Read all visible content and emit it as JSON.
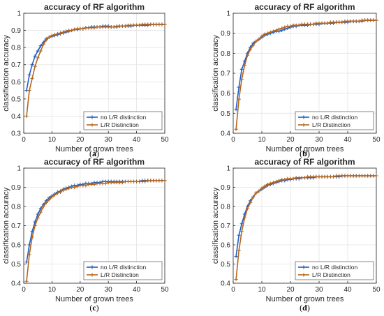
{
  "colors": {
    "series_blue": "#1f5fc1",
    "series_orange": "#b5651d",
    "grid": "#e3e3e3",
    "axis": "#262626"
  },
  "chart_data": [
    {
      "panel_label": "a",
      "type": "line",
      "title": "accuracy of RF algorithm",
      "xlabel": "Number of grown trees",
      "ylabel": "classification accuracy",
      "xlim": [
        0,
        50
      ],
      "ylim": [
        0.3,
        1.0
      ],
      "xticks": [
        0,
        10,
        20,
        30,
        40,
        50
      ],
      "yticks": [
        0.3,
        0.4,
        0.5,
        0.6,
        0.7,
        0.8,
        0.9,
        1.0
      ],
      "grid": true,
      "legend_position": "bottom-right",
      "series": [
        {
          "name": "no L/R distinction",
          "color": "#1f5fc1",
          "x": [
            1,
            2,
            3,
            4,
            5,
            6,
            7,
            8,
            9,
            10,
            11,
            12,
            13,
            14,
            15,
            16,
            17,
            18,
            19,
            20,
            21,
            22,
            23,
            24,
            25,
            26,
            27,
            28,
            29,
            30,
            31,
            32,
            33,
            34,
            35,
            36,
            37,
            38,
            39,
            40,
            41,
            42,
            43,
            44,
            45,
            46,
            47,
            48,
            49,
            50
          ],
          "y": [
            0.55,
            0.64,
            0.7,
            0.75,
            0.78,
            0.81,
            0.83,
            0.85,
            0.86,
            0.865,
            0.87,
            0.875,
            0.88,
            0.885,
            0.89,
            0.895,
            0.9,
            0.905,
            0.905,
            0.91,
            0.91,
            0.915,
            0.915,
            0.92,
            0.92,
            0.92,
            0.92,
            0.925,
            0.925,
            0.925,
            0.92,
            0.92,
            0.92,
            0.925,
            0.925,
            0.925,
            0.925,
            0.925,
            0.93,
            0.93,
            0.93,
            0.93,
            0.93,
            0.93,
            0.935,
            0.935,
            0.935,
            0.935,
            0.935,
            0.935
          ]
        },
        {
          "name": "L/R Distinction",
          "color": "#b5651d",
          "x": [
            1,
            2,
            3,
            4,
            5,
            6,
            7,
            8,
            9,
            10,
            11,
            12,
            13,
            14,
            15,
            16,
            17,
            18,
            19,
            20,
            21,
            22,
            23,
            24,
            25,
            26,
            27,
            28,
            29,
            30,
            31,
            32,
            33,
            34,
            35,
            36,
            37,
            38,
            39,
            40,
            41,
            42,
            43,
            44,
            45,
            46,
            47,
            48,
            49,
            50
          ],
          "y": [
            0.4,
            0.55,
            0.62,
            0.69,
            0.74,
            0.78,
            0.82,
            0.845,
            0.86,
            0.87,
            0.875,
            0.88,
            0.885,
            0.89,
            0.895,
            0.9,
            0.9,
            0.905,
            0.91,
            0.91,
            0.91,
            0.915,
            0.915,
            0.915,
            0.915,
            0.92,
            0.92,
            0.92,
            0.92,
            0.92,
            0.92,
            0.92,
            0.925,
            0.925,
            0.925,
            0.925,
            0.93,
            0.93,
            0.93,
            0.93,
            0.93,
            0.935,
            0.935,
            0.935,
            0.935,
            0.935,
            0.935,
            0.935,
            0.935,
            0.935
          ]
        }
      ]
    },
    {
      "panel_label": "b",
      "type": "line",
      "title": "accuracy of RF algorithm",
      "xlabel": "Number of grown trees",
      "ylabel": "classification accuracy",
      "xlim": [
        0,
        50
      ],
      "ylim": [
        0.4,
        1.0
      ],
      "xticks": [
        0,
        10,
        20,
        30,
        40,
        50
      ],
      "yticks": [
        0.4,
        0.5,
        0.6,
        0.7,
        0.8,
        0.9,
        1.0
      ],
      "grid": true,
      "legend_position": "bottom-right",
      "series": [
        {
          "name": "no L/R distinction",
          "color": "#1f5fc1",
          "x": [
            1,
            2,
            3,
            4,
            5,
            6,
            7,
            8,
            9,
            10,
            11,
            12,
            13,
            14,
            15,
            16,
            17,
            18,
            19,
            20,
            21,
            22,
            23,
            24,
            25,
            26,
            27,
            28,
            29,
            30,
            31,
            32,
            33,
            34,
            35,
            36,
            37,
            38,
            39,
            40,
            41,
            42,
            43,
            44,
            45,
            46,
            47,
            48,
            49,
            50
          ],
          "y": [
            0.52,
            0.63,
            0.72,
            0.76,
            0.8,
            0.83,
            0.85,
            0.86,
            0.87,
            0.88,
            0.89,
            0.895,
            0.9,
            0.905,
            0.91,
            0.91,
            0.915,
            0.92,
            0.925,
            0.93,
            0.935,
            0.935,
            0.94,
            0.94,
            0.94,
            0.94,
            0.945,
            0.945,
            0.945,
            0.945,
            0.95,
            0.95,
            0.95,
            0.95,
            0.95,
            0.955,
            0.955,
            0.955,
            0.955,
            0.955,
            0.96,
            0.96,
            0.96,
            0.96,
            0.96,
            0.965,
            0.965,
            0.965,
            0.965,
            0.965
          ]
        },
        {
          "name": "L/R Distinction",
          "color": "#b5651d",
          "x": [
            1,
            2,
            3,
            4,
            5,
            6,
            7,
            8,
            9,
            10,
            11,
            12,
            13,
            14,
            15,
            16,
            17,
            18,
            19,
            20,
            21,
            22,
            23,
            24,
            25,
            26,
            27,
            28,
            29,
            30,
            31,
            32,
            33,
            34,
            35,
            36,
            37,
            38,
            39,
            40,
            41,
            42,
            43,
            44,
            45,
            46,
            47,
            48,
            49,
            50
          ],
          "y": [
            0.42,
            0.57,
            0.67,
            0.74,
            0.79,
            0.82,
            0.84,
            0.86,
            0.87,
            0.885,
            0.895,
            0.9,
            0.905,
            0.91,
            0.915,
            0.92,
            0.925,
            0.93,
            0.935,
            0.935,
            0.94,
            0.94,
            0.94,
            0.945,
            0.945,
            0.945,
            0.945,
            0.945,
            0.95,
            0.95,
            0.95,
            0.95,
            0.95,
            0.955,
            0.955,
            0.955,
            0.955,
            0.955,
            0.96,
            0.96,
            0.96,
            0.96,
            0.96,
            0.96,
            0.965,
            0.965,
            0.965,
            0.965,
            0.965,
            0.965
          ]
        }
      ]
    },
    {
      "panel_label": "c",
      "type": "line",
      "title": "accuracy of RF algorithm",
      "xlabel": "Number of grown trees",
      "ylabel": "classification accuracy",
      "xlim": [
        0,
        50
      ],
      "ylim": [
        0.4,
        1.0
      ],
      "xticks": [
        0,
        10,
        20,
        30,
        40,
        50
      ],
      "yticks": [
        0.4,
        0.5,
        0.6,
        0.7,
        0.8,
        0.9,
        1.0
      ],
      "grid": true,
      "legend_position": "bottom-right",
      "series": [
        {
          "name": "no L/R distinction",
          "color": "#1f5fc1",
          "x": [
            1,
            2,
            3,
            4,
            5,
            6,
            7,
            8,
            9,
            10,
            11,
            12,
            13,
            14,
            15,
            16,
            17,
            18,
            19,
            20,
            21,
            22,
            23,
            24,
            25,
            26,
            27,
            28,
            29,
            30,
            31,
            32,
            33,
            34,
            35,
            36,
            37,
            38,
            39,
            40,
            41,
            42,
            43,
            44,
            45,
            46,
            47,
            48,
            49,
            50
          ],
          "y": [
            0.51,
            0.6,
            0.67,
            0.72,
            0.76,
            0.79,
            0.81,
            0.83,
            0.845,
            0.855,
            0.865,
            0.875,
            0.88,
            0.89,
            0.895,
            0.9,
            0.905,
            0.91,
            0.91,
            0.915,
            0.915,
            0.92,
            0.92,
            0.92,
            0.925,
            0.925,
            0.925,
            0.93,
            0.93,
            0.93,
            0.93,
            0.93,
            0.93,
            0.93,
            0.93,
            0.93,
            0.93,
            0.93,
            0.93,
            0.93,
            0.93,
            0.935,
            0.935,
            0.935,
            0.935,
            0.935,
            0.935,
            0.935,
            0.935,
            0.935
          ]
        },
        {
          "name": "L/R Distinction",
          "color": "#b5651d",
          "x": [
            1,
            2,
            3,
            4,
            5,
            6,
            7,
            8,
            9,
            10,
            11,
            12,
            13,
            14,
            15,
            16,
            17,
            18,
            19,
            20,
            21,
            22,
            23,
            24,
            25,
            26,
            27,
            28,
            29,
            30,
            31,
            32,
            33,
            34,
            35,
            36,
            37,
            38,
            39,
            40,
            41,
            42,
            43,
            44,
            45,
            46,
            47,
            48,
            49,
            50
          ],
          "y": [
            0.41,
            0.55,
            0.64,
            0.7,
            0.74,
            0.77,
            0.8,
            0.82,
            0.835,
            0.85,
            0.86,
            0.87,
            0.875,
            0.885,
            0.89,
            0.895,
            0.9,
            0.9,
            0.905,
            0.91,
            0.91,
            0.91,
            0.915,
            0.915,
            0.915,
            0.92,
            0.92,
            0.92,
            0.92,
            0.925,
            0.925,
            0.925,
            0.925,
            0.925,
            0.925,
            0.93,
            0.93,
            0.93,
            0.93,
            0.93,
            0.93,
            0.93,
            0.93,
            0.935,
            0.935,
            0.935,
            0.935,
            0.935,
            0.935,
            0.935
          ]
        }
      ]
    },
    {
      "panel_label": "d",
      "type": "line",
      "title": "accuracy of RF algorithm",
      "xlabel": "Number of grown trees",
      "ylabel": "classification accuracy",
      "xlim": [
        0,
        50
      ],
      "ylim": [
        0.4,
        1.0
      ],
      "xticks": [
        0,
        10,
        20,
        30,
        40,
        50
      ],
      "yticks": [
        0.4,
        0.5,
        0.6,
        0.7,
        0.8,
        0.9,
        1.0
      ],
      "grid": true,
      "legend_position": "bottom-right",
      "series": [
        {
          "name": "no L/R distinction",
          "color": "#1f5fc1",
          "x": [
            1,
            2,
            3,
            4,
            5,
            6,
            7,
            8,
            9,
            10,
            11,
            12,
            13,
            14,
            15,
            16,
            17,
            18,
            19,
            20,
            21,
            22,
            23,
            24,
            25,
            26,
            27,
            28,
            29,
            30,
            31,
            32,
            33,
            34,
            35,
            36,
            37,
            38,
            39,
            40,
            41,
            42,
            43,
            44,
            45,
            46,
            47,
            48,
            49,
            50
          ],
          "y": [
            0.54,
            0.65,
            0.71,
            0.76,
            0.8,
            0.83,
            0.85,
            0.87,
            0.88,
            0.89,
            0.9,
            0.91,
            0.915,
            0.92,
            0.925,
            0.93,
            0.935,
            0.935,
            0.94,
            0.94,
            0.945,
            0.945,
            0.945,
            0.95,
            0.95,
            0.95,
            0.95,
            0.95,
            0.955,
            0.955,
            0.955,
            0.955,
            0.955,
            0.955,
            0.955,
            0.955,
            0.955,
            0.96,
            0.96,
            0.96,
            0.96,
            0.96,
            0.96,
            0.96,
            0.96,
            0.96,
            0.96,
            0.96,
            0.96,
            0.96
          ]
        },
        {
          "name": "L/R Distinction",
          "color": "#b5651d",
          "x": [
            1,
            2,
            3,
            4,
            5,
            6,
            7,
            8,
            9,
            10,
            11,
            12,
            13,
            14,
            15,
            16,
            17,
            18,
            19,
            20,
            21,
            22,
            23,
            24,
            25,
            26,
            27,
            28,
            29,
            30,
            31,
            32,
            33,
            34,
            35,
            36,
            37,
            38,
            39,
            40,
            41,
            42,
            43,
            44,
            45,
            46,
            47,
            48,
            49,
            50
          ],
          "y": [
            0.42,
            0.57,
            0.67,
            0.74,
            0.79,
            0.82,
            0.85,
            0.87,
            0.88,
            0.895,
            0.905,
            0.915,
            0.92,
            0.925,
            0.93,
            0.935,
            0.94,
            0.94,
            0.945,
            0.945,
            0.945,
            0.95,
            0.95,
            0.95,
            0.95,
            0.955,
            0.955,
            0.955,
            0.955,
            0.955,
            0.955,
            0.955,
            0.955,
            0.955,
            0.955,
            0.96,
            0.96,
            0.96,
            0.96,
            0.96,
            0.96,
            0.96,
            0.96,
            0.96,
            0.96,
            0.96,
            0.96,
            0.96,
            0.96,
            0.96
          ]
        }
      ]
    }
  ]
}
